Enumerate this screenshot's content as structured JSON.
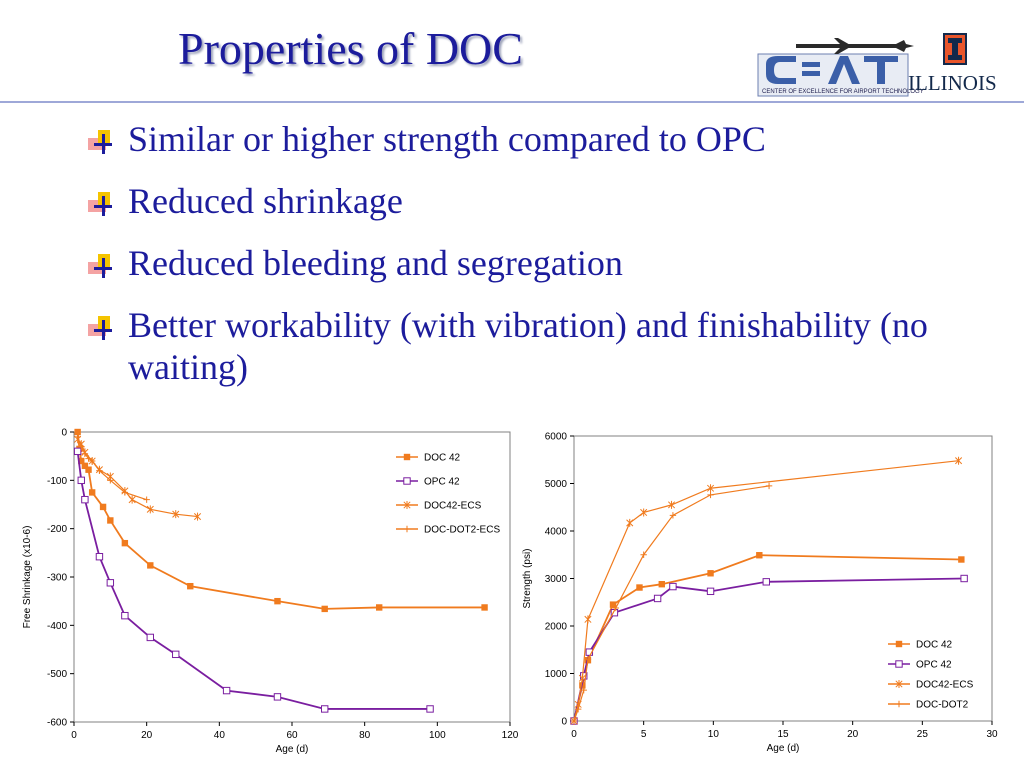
{
  "slide": {
    "title": "Properties of DOC",
    "bullets": [
      "Similar or higher strength compared to OPC",
      "Reduced shrinkage",
      "Reduced bleeding and segregation",
      "Better workability (with vibration) and finishability (no waiting)"
    ],
    "logo": {
      "name": "CEAT",
      "subtitle": "CENTER OF EXCELLENCE FOR AIRPORT TECHNOLOGY",
      "university": "ILLINOIS"
    },
    "colors": {
      "title": "#1c1c9c",
      "doc": "#f07b1e",
      "opc": "#7a1ea0"
    }
  },
  "chart_data": [
    {
      "type": "line",
      "xlabel": "Age (d)",
      "ylabel": "Free Shrinkage (x10-6)",
      "xlim": [
        0,
        120
      ],
      "ylim": [
        -600,
        0
      ],
      "xticks": [
        0,
        20,
        40,
        60,
        80,
        100,
        120
      ],
      "yticks": [
        0,
        -100,
        -200,
        -300,
        -400,
        -500,
        -600
      ],
      "legend_position": "top-right",
      "series": [
        {
          "name": "DOC 42",
          "color": "#f07b1e",
          "marker": "square-filled",
          "x": [
            1,
            1.5,
            2,
            3,
            4,
            5,
            8,
            10,
            14,
            21,
            32,
            56,
            69,
            84,
            113
          ],
          "y": [
            0,
            -35,
            -60,
            -70,
            -78,
            -125,
            -155,
            -183,
            -230,
            -276,
            -319,
            -350,
            -366,
            -363,
            -363
          ]
        },
        {
          "name": "OPC 42",
          "color": "#7a1ea0",
          "marker": "square-open",
          "x": [
            1,
            2,
            3,
            7,
            10,
            14,
            21,
            28,
            42,
            56,
            69,
            98
          ],
          "y": [
            -40,
            -100,
            -140,
            -258,
            -312,
            -380,
            -425,
            -460,
            -535,
            -548,
            -573,
            -573
          ]
        },
        {
          "name": "DOC42-ECS",
          "color": "#f07b1e",
          "marker": "star",
          "x": [
            1,
            2,
            3,
            5,
            7,
            10,
            14,
            16,
            21,
            28,
            34
          ],
          "y": [
            -15,
            -25,
            -42,
            -60,
            -78,
            -92,
            -122,
            -140,
            -160,
            -170,
            -175
          ]
        },
        {
          "name": "DOC-DOT2-ECS",
          "color": "#f07b1e",
          "marker": "plus",
          "x": [
            1,
            2,
            3,
            4,
            5,
            7,
            10,
            14,
            20
          ],
          "y": [
            -10,
            -30,
            -45,
            -55,
            -60,
            -80,
            -100,
            -125,
            -140
          ]
        }
      ]
    },
    {
      "type": "line",
      "xlabel": "Age (d)",
      "ylabel": "Strength (psi)",
      "xlim": [
        0,
        30
      ],
      "ylim": [
        0,
        6000
      ],
      "xticks": [
        0,
        5,
        10,
        15,
        20,
        25,
        30
      ],
      "yticks": [
        0,
        1000,
        2000,
        3000,
        4000,
        5000,
        6000
      ],
      "legend_position": "bottom-right",
      "series": [
        {
          "name": "DOC 42",
          "color": "#f07b1e",
          "marker": "square-filled",
          "x": [
            0,
            0.6,
            1,
            2.8,
            4.7,
            6.3,
            9.8,
            13.3,
            27.8
          ],
          "y": [
            0,
            750,
            1280,
            2450,
            2810,
            2880,
            3110,
            3490,
            3400
          ]
        },
        {
          "name": "OPC 42",
          "color": "#7a1ea0",
          "marker": "square-open",
          "x": [
            0,
            0.7,
            1.1,
            2.9,
            6,
            7.1,
            9.8,
            13.8,
            28
          ],
          "y": [
            0,
            950,
            1450,
            2280,
            2580,
            2830,
            2730,
            2930,
            3000
          ]
        },
        {
          "name": "DOC42-ECS",
          "color": "#f07b1e",
          "marker": "star",
          "x": [
            0,
            0.3,
            0.6,
            1,
            4,
            5,
            7,
            9.8,
            27.6
          ],
          "y": [
            0,
            350,
            900,
            2140,
            4170,
            4390,
            4550,
            4900,
            5480
          ]
        },
        {
          "name": "DOC-DOT2",
          "color": "#f07b1e",
          "marker": "plus",
          "x": [
            0,
            0.3,
            0.7,
            1,
            3,
            5,
            7.1,
            9.8,
            14
          ],
          "y": [
            0,
            250,
            650,
            1300,
            2380,
            3500,
            4330,
            4760,
            4950
          ]
        }
      ]
    }
  ]
}
